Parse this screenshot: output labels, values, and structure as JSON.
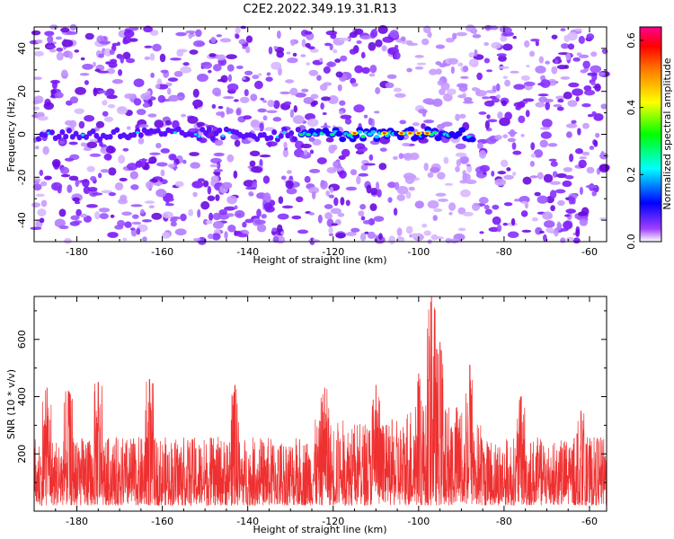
{
  "title": "C2E2.2022.349.19.31.R13",
  "chart_data": [
    {
      "type": "heatmap",
      "xlabel": "Height of straight line (km)",
      "ylabel": "Frequency (Hz)",
      "xlim": [
        -190,
        -56
      ],
      "ylim": [
        -50,
        50
      ],
      "x_ticks": [
        -180,
        -160,
        -140,
        -120,
        -100,
        -80,
        -60
      ],
      "y_ticks": [
        -40,
        -20,
        0,
        20,
        40
      ],
      "colorbar": {
        "label": "Normalized spectral amplitude",
        "range": [
          0.0,
          0.64
        ],
        "ticks": [
          0.0,
          0.2,
          0.4,
          0.6
        ],
        "colormap": [
          "#ffffff",
          "#8a2be2",
          "#0000ff",
          "#00ffff",
          "#00ff00",
          "#ffff00",
          "#ff8800",
          "#ff0000",
          "#ff00aa"
        ]
      },
      "features": {
        "signal_band_frequency_hz": 0,
        "signal_band_x_range": [
          -128,
          -88
        ],
        "signal_peak_x": -100,
        "noise_gap_x_range": [
          -105,
          -86
        ]
      }
    },
    {
      "type": "line",
      "xlabel": "Height of straight line (km)",
      "ylabel": "SNR (10 * v/v)",
      "xlim": [
        -190,
        -56
      ],
      "ylim": [
        0,
        750
      ],
      "x_ticks": [
        -180,
        -160,
        -140,
        -120,
        -100,
        -80,
        -60
      ],
      "y_ticks": [
        200,
        400,
        600
      ],
      "color": "#ef3030",
      "baseline": 100,
      "envelope_peaks": [
        {
          "x": -187,
          "y": 430
        },
        {
          "x": -182,
          "y": 420
        },
        {
          "x": -175,
          "y": 450
        },
        {
          "x": -163,
          "y": 460
        },
        {
          "x": -143,
          "y": 440
        },
        {
          "x": -122,
          "y": 430
        },
        {
          "x": -110,
          "y": 440
        },
        {
          "x": -100,
          "y": 480
        },
        {
          "x": -97,
          "y": 750
        },
        {
          "x": -95,
          "y": 590
        },
        {
          "x": -88,
          "y": 510
        },
        {
          "x": -76,
          "y": 400
        },
        {
          "x": -62,
          "y": 350
        }
      ]
    }
  ]
}
